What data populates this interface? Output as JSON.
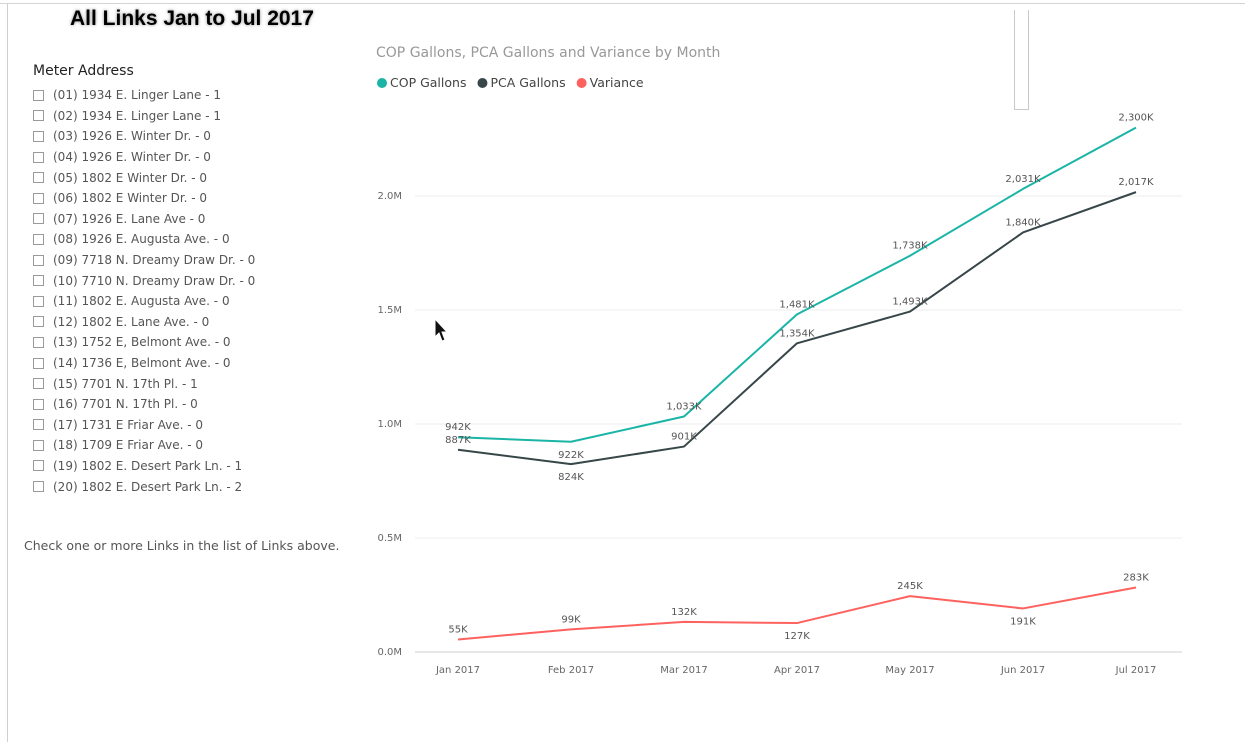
{
  "page": {
    "title": "All Links Jan to Jul 2017"
  },
  "slicer": {
    "header": "Meter Address",
    "items": [
      "(01) 1934 E. Linger Lane - 1",
      "(02) 1934 E. Linger Lane - 1",
      "(03) 1926 E. Winter Dr. - 0",
      "(04) 1926 E. Winter Dr. - 0",
      "(05) 1802 E Winter Dr. - 0",
      "(06) 1802 E Winter Dr. - 0",
      "(07) 1926 E. Lane Ave - 0",
      "(08) 1926 E. Augusta Ave. - 0",
      "(09) 7718 N. Dreamy Draw Dr. - 0",
      "(10) 7710 N. Dreamy Draw Dr. - 0",
      "(11) 1802 E. Augusta Ave. - 0",
      "(12) 1802 E. Lane Ave. - 0",
      "(13) 1752 E, Belmont Ave. - 0",
      "(14) 1736 E, Belmont Ave. - 0",
      "(15) 7701 N. 17th Pl. - 1",
      "(16) 7701 N. 17th Pl. - 0",
      "(17) 1731 E Friar Ave. - 0",
      "(18) 1709 E Friar Ave. - 0",
      "(19) 1802 E. Desert Park Ln. - 1",
      "(20) 1802 E. Desert Park Ln. - 2"
    ],
    "hint": "Check one or more Links in the list of Links above."
  },
  "chart_data": {
    "type": "line",
    "title": "COP Gallons, PCA Gallons and Variance by Month",
    "xlabel": "",
    "ylabel": "",
    "categories": [
      "Jan 2017",
      "Feb 2017",
      "Mar 2017",
      "Apr 2017",
      "May 2017",
      "Jun 2017",
      "Jul 2017"
    ],
    "ylim": [
      0,
      2300000
    ],
    "yticks": [
      {
        "value": 0,
        "label": "0.0M"
      },
      {
        "value": 500000,
        "label": "0.5M"
      },
      {
        "value": 1000000,
        "label": "1.0M"
      },
      {
        "value": 1500000,
        "label": "1.5M"
      },
      {
        "value": 2000000,
        "label": "2.0M"
      }
    ],
    "grid": true,
    "legend": "top-left",
    "series": [
      {
        "name": "COP Gallons",
        "color": "#1ab5a6",
        "values": [
          942000,
          922000,
          1033000,
          1481000,
          1738000,
          2031000,
          2300000
        ],
        "labels": [
          "942K",
          "922K",
          "1,033K",
          "1,481K",
          "1,738K",
          "2,031K",
          "2,300K"
        ]
      },
      {
        "name": "PCA Gallons",
        "color": "#374649",
        "values": [
          887000,
          824000,
          901000,
          1354000,
          1493000,
          1840000,
          2017000
        ],
        "labels": [
          "887K",
          "824K",
          "901K",
          "1,354K",
          "1,493K",
          "1,840K",
          "2,017K"
        ]
      },
      {
        "name": "Variance",
        "color": "#fd625e",
        "values": [
          55000,
          99000,
          132000,
          127000,
          245000,
          191000,
          283000
        ],
        "labels": [
          "55K",
          "99K",
          "132K",
          "127K",
          "245K",
          "191K",
          "283K"
        ]
      }
    ]
  }
}
